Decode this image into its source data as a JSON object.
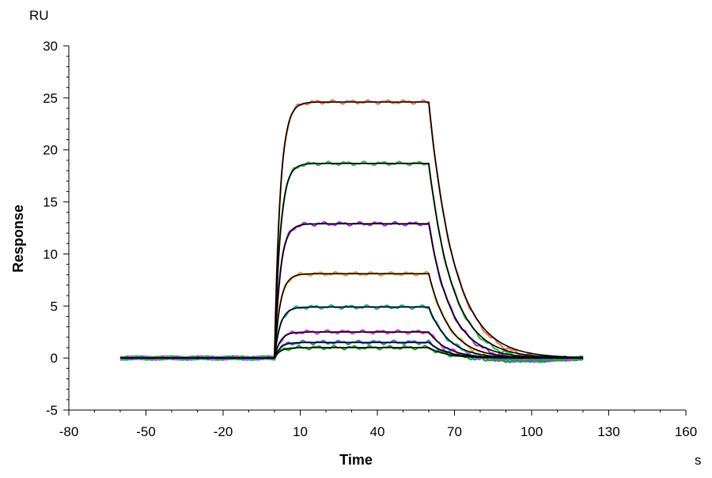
{
  "chart_data": {
    "type": "line",
    "title": "",
    "xlabel": "Time",
    "ylabel": "Response",
    "x_unit": "s",
    "y_unit": "RU",
    "xlim": [
      -80,
      160
    ],
    "ylim": [
      -5,
      30
    ],
    "x_ticks": [
      -80,
      -50,
      -20,
      10,
      40,
      70,
      100,
      130,
      160
    ],
    "y_ticks": [
      -5,
      0,
      5,
      10,
      15,
      20,
      25,
      30
    ],
    "grid": false,
    "legend": "none",
    "association_start": 0,
    "dissociation_start": 60,
    "baseline_x_range": [
      -60,
      0
    ],
    "end_x": 120,
    "fit_color": "#000000",
    "series": [
      {
        "plateau": 24.6,
        "color": "#e8734a"
      },
      {
        "plateau": 18.7,
        "color": "#3cb44b"
      },
      {
        "plateau": 12.9,
        "color": "#9b30c8"
      },
      {
        "plateau": 8.1,
        "color": "#f0a030"
      },
      {
        "plateau": 4.9,
        "color": "#1aa6b7"
      },
      {
        "plateau": 2.5,
        "color": "#d63bd6"
      },
      {
        "plateau": 1.5,
        "color": "#2a6fdb"
      },
      {
        "plateau": 1.0,
        "color": "#22a02a"
      }
    ]
  }
}
